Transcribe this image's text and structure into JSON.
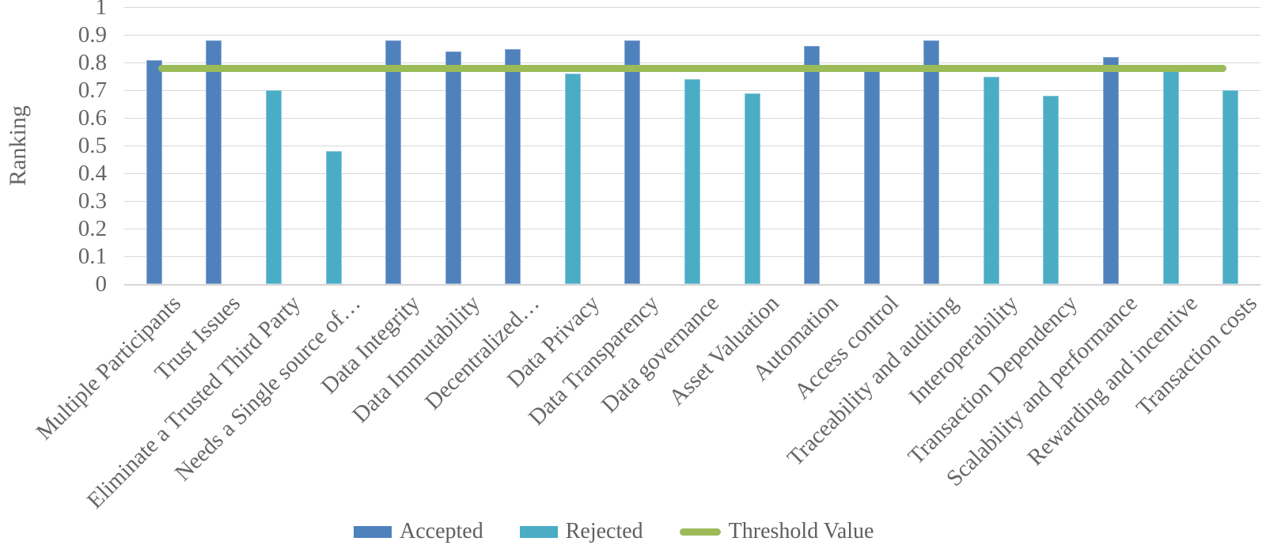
{
  "chart_data": {
    "type": "bar",
    "title": "",
    "xlabel": "",
    "ylabel": "Ranking",
    "ylim": [
      0,
      1
    ],
    "y_ticks": [
      0,
      0.1,
      0.2,
      0.3,
      0.4,
      0.5,
      0.6,
      0.7,
      0.8,
      0.9,
      1
    ],
    "y_tick_labels": [
      "0",
      "0.1",
      "0.2",
      "0.3",
      "0.4",
      "0.5",
      "0.6",
      "0.7",
      "0.8",
      "0.9",
      "1"
    ],
    "grid": "horizontal gridlines on",
    "legend_position": "bottom",
    "gridline_color": "#D9D9D9",
    "label_color": "#666666",
    "categories": [
      "Multiple Participants",
      "Trust Issues",
      "Eliminate a Trusted Third Party",
      "Needs a Single source of…",
      "Data Integrity",
      "Data Immutability",
      "Decentralized…",
      "Data Privacy",
      "Data Transparency",
      "Data governance",
      "Asset Valuation",
      "Automation",
      "Access control",
      "Traceability and auditing",
      "Interoperability",
      "Transaction Dependency",
      "Scalability and performance",
      "Rewarding and incentive",
      "Transaction costs"
    ],
    "series": [
      {
        "name": "Accepted",
        "type": "bar",
        "color": "#4F81BD",
        "values": [
          0.81,
          0.88,
          null,
          null,
          0.88,
          0.84,
          0.85,
          null,
          0.88,
          null,
          null,
          0.86,
          0.77,
          0.88,
          null,
          null,
          0.82,
          null,
          null
        ]
      },
      {
        "name": "Rejected",
        "type": "bar",
        "color": "#4BACC6",
        "values": [
          null,
          null,
          0.7,
          0.48,
          null,
          null,
          null,
          0.76,
          null,
          0.74,
          0.69,
          null,
          null,
          null,
          0.75,
          0.68,
          null,
          0.77,
          0.7
        ]
      },
      {
        "name": "Threshold Value",
        "type": "line",
        "color": "#9BBB59",
        "value": 0.78
      }
    ]
  }
}
